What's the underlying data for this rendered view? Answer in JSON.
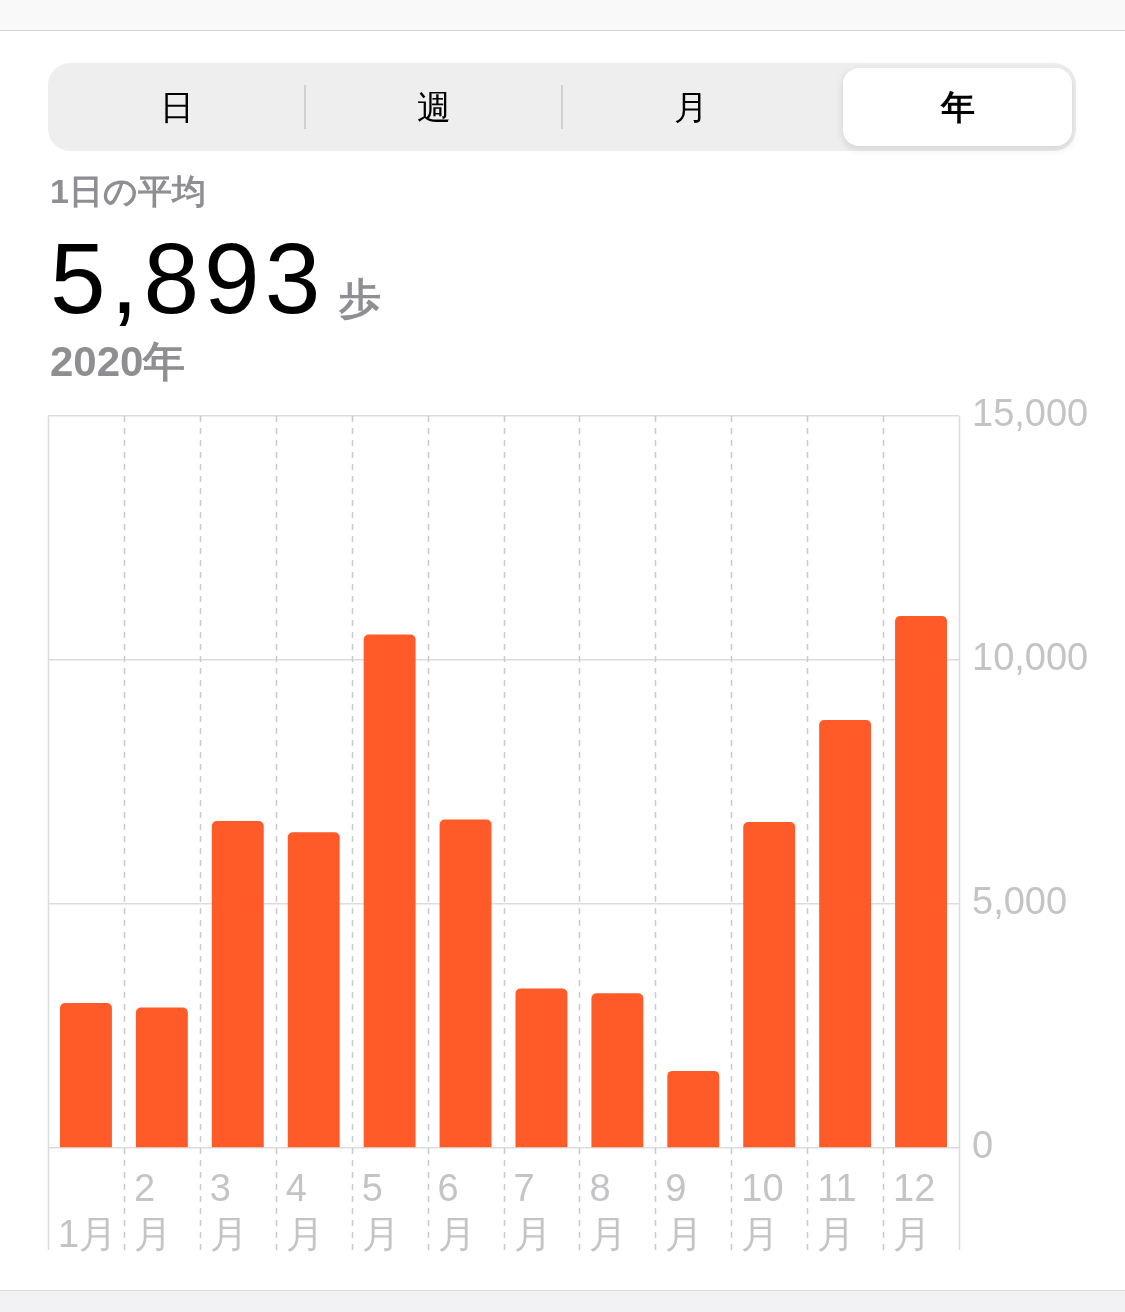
{
  "chart_data": {
    "type": "bar",
    "categories": [
      "1月",
      "2月",
      "3月",
      "4月",
      "5月",
      "6月",
      "7月",
      "8月",
      "9月",
      "10月",
      "11月",
      "12月"
    ],
    "values": [
      2970,
      2880,
      6700,
      6470,
      10520,
      6730,
      3270,
      3170,
      1580,
      6680,
      8770,
      10900
    ],
    "color": "#ff5b29",
    "ylim": [
      0,
      15000
    ],
    "yticks": [
      0,
      {
        "value": 5000,
        "label": "5,000"
      },
      {
        "value": 10000,
        "label": "10,000"
      },
      {
        "value": 15000,
        "label": "15,000"
      }
    ],
    "grid": true,
    "annotations": [
      "日",
      "週",
      "月",
      "年",
      "1日の平均",
      "5,893",
      "歩",
      "2020年"
    ]
  }
}
